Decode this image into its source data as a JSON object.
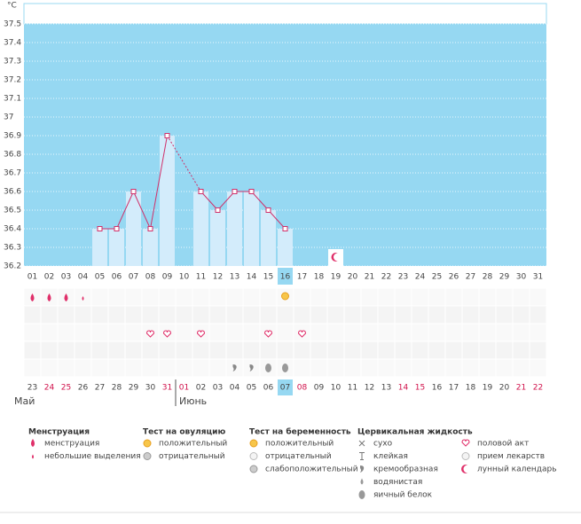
{
  "chart_data": {
    "type": "bbt",
    "y_unit": "°C",
    "ylim": [
      36.2,
      37.5
    ],
    "yticks": [
      36.2,
      36.3,
      36.4,
      36.5,
      36.6,
      36.7,
      36.8,
      36.9,
      37,
      37.1,
      37.2,
      37.3,
      37.4,
      37.5
    ],
    "days": [
      "01",
      "02",
      "03",
      "04",
      "05",
      "06",
      "07",
      "08",
      "09",
      "10",
      "11",
      "12",
      "13",
      "14",
      "15",
      "16",
      "17",
      "18",
      "19",
      "20",
      "21",
      "22",
      "23",
      "24",
      "25",
      "26",
      "27",
      "28",
      "29",
      "30",
      "31"
    ],
    "values": [
      null,
      null,
      null,
      null,
      36.4,
      36.4,
      36.6,
      36.4,
      36.9,
      null,
      36.6,
      36.5,
      36.6,
      36.6,
      36.5,
      36.4,
      null,
      null,
      null,
      null,
      null,
      null,
      null,
      null,
      null,
      null,
      null,
      null,
      null,
      null,
      null
    ],
    "current_index": 15,
    "dates": [
      "23",
      "24",
      "25",
      "26",
      "27",
      "28",
      "29",
      "30",
      "31",
      "01",
      "02",
      "03",
      "04",
      "05",
      "06",
      "07",
      "08",
      "09",
      "10",
      "11",
      "12",
      "13",
      "14",
      "15",
      "16",
      "17",
      "18",
      "19",
      "20",
      "21",
      "22"
    ],
    "red_dates": [
      1,
      2,
      8,
      9,
      16,
      22,
      23,
      29,
      30
    ],
    "months": [
      "Май",
      "Июнь"
    ],
    "legend": [
      {
        "title": "Менструация",
        "items": [
          "менструация",
          "небольшие выделения"
        ]
      },
      {
        "title": "Тест на овуляцию",
        "items": [
          "положительный",
          "отрицательный"
        ]
      },
      {
        "title": "Тест на беременность",
        "items": [
          "положительный",
          "отрицательный",
          "слабоположительный"
        ]
      },
      {
        "title": "Цервикальная жидкость",
        "items": [
          "сухо",
          "клейкая",
          "кремообразная",
          "водянистая",
          "яичный белок"
        ]
      },
      {
        "items": [
          "половой акт",
          "прием лекарств",
          "лунный календарь"
        ]
      }
    ]
  }
}
